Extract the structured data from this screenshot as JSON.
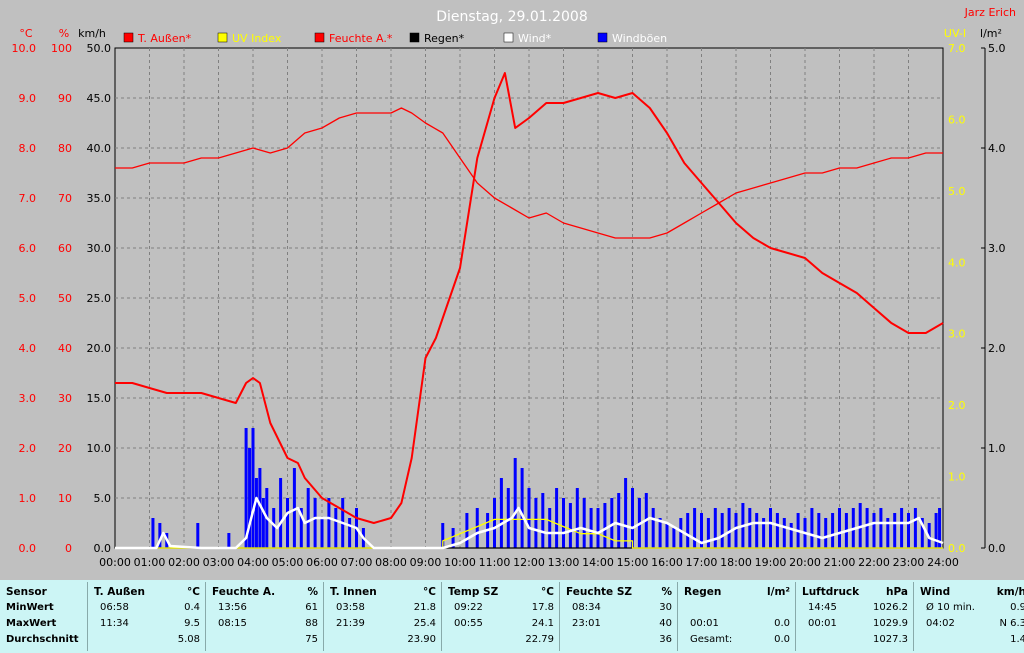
{
  "header": {
    "title": "Dienstag, 29.01.2008",
    "author": "Jarz Erich"
  },
  "axis_units": {
    "temp": "°C",
    "humidity": "%",
    "wind": "km/h",
    "uv": "UV-I",
    "rain": "l/m²"
  },
  "legend": [
    {
      "label": "T. Außen*",
      "swatch": "#ff0000",
      "color": "#ff0000"
    },
    {
      "label": "UV Index",
      "swatch": "#ffff00",
      "color": "#ffff00"
    },
    {
      "label": "Feuchte A.*",
      "swatch": "#ff0000",
      "color": "#ff0000"
    },
    {
      "label": "Regen*",
      "swatch": "#000000",
      "color": "#000000"
    },
    {
      "label": "Wind*",
      "swatch": "#ffffff",
      "color": "#ffffff"
    },
    {
      "label": "Windböen",
      "swatch": "#0000ff",
      "color": "#ffffff"
    }
  ],
  "colors": {
    "background": "#c0c0c0",
    "temp": "#ff0000",
    "humidity": "#ff0000",
    "uv": "#ffff00",
    "wind": "#ffffff",
    "gusts": "#0000ff",
    "rain": "#000000",
    "summary_bg": "#ccf5f5"
  },
  "chart_data": {
    "type": "line",
    "title": "Dienstag, 29.01.2008",
    "x_ticks": [
      "00:00",
      "01:00",
      "02:00",
      "03:00",
      "04:00",
      "05:00",
      "06:00",
      "07:00",
      "08:00",
      "09:00",
      "10:00",
      "11:00",
      "12:00",
      "13:00",
      "14:00",
      "15:00",
      "16:00",
      "17:00",
      "18:00",
      "19:00",
      "20:00",
      "21:00",
      "22:00",
      "23:00",
      "24:00"
    ],
    "y_axes": {
      "temp": {
        "unit": "°C",
        "ylim": [
          0,
          10
        ],
        "ticks": [
          "0.0",
          "1.0",
          "2.0",
          "3.0",
          "4.0",
          "5.0",
          "6.0",
          "7.0",
          "8.0",
          "9.0",
          "10.0"
        ]
      },
      "humidity": {
        "unit": "%",
        "ylim": [
          0,
          100
        ],
        "ticks": [
          "0",
          "10",
          "20",
          "30",
          "40",
          "50",
          "60",
          "70",
          "80",
          "90",
          "100"
        ]
      },
      "wind": {
        "unit": "km/h",
        "ylim": [
          0,
          50
        ],
        "ticks": [
          "0.0",
          "5.0",
          "10.0",
          "15.0",
          "20.0",
          "25.0",
          "30.0",
          "35.0",
          "40.0",
          "45.0",
          "50.0"
        ]
      },
      "uv": {
        "unit": "UV-I",
        "ylim": [
          0,
          7
        ],
        "ticks": [
          "0.0",
          "1.0",
          "2.0",
          "3.0",
          "4.0",
          "5.0",
          "6.0",
          "7.0"
        ]
      },
      "rain": {
        "unit": "l/m²",
        "ylim": [
          0,
          5
        ],
        "ticks": [
          "0.0",
          "1.0",
          "2.0",
          "3.0",
          "4.0",
          "5.0"
        ]
      }
    },
    "grid": true,
    "series": [
      {
        "name": "T. Außen*",
        "axis": "temp",
        "x": [
          0,
          0.5,
          1,
          1.5,
          2,
          2.5,
          3,
          3.5,
          3.8,
          4,
          4.2,
          4.5,
          5,
          5.3,
          5.5,
          6,
          6.5,
          7,
          7.5,
          8,
          8.3,
          8.6,
          9,
          9.3,
          9.6,
          10,
          10.5,
          11,
          11.3,
          11.6,
          12,
          12.5,
          13,
          13.5,
          14,
          14.5,
          15,
          15.5,
          16,
          16.5,
          17,
          17.5,
          18,
          18.5,
          19,
          19.5,
          20,
          20.5,
          21,
          21.5,
          22,
          22.5,
          23,
          23.5,
          24
        ],
        "y": [
          3.3,
          3.3,
          3.2,
          3.1,
          3.1,
          3.1,
          3.0,
          2.9,
          3.3,
          3.4,
          3.3,
          2.5,
          1.8,
          1.7,
          1.4,
          1.0,
          0.8,
          0.6,
          0.5,
          0.6,
          0.9,
          1.8,
          3.8,
          4.2,
          4.8,
          5.6,
          7.8,
          9.0,
          9.5,
          8.4,
          8.6,
          8.9,
          8.9,
          9.0,
          9.1,
          9.0,
          9.1,
          8.8,
          8.3,
          7.7,
          7.3,
          6.9,
          6.5,
          6.2,
          6.0,
          5.9,
          5.8,
          5.5,
          5.3,
          5.1,
          4.8,
          4.5,
          4.3,
          4.3,
          4.5
        ]
      },
      {
        "name": "Feuchte A.*",
        "axis": "humidity",
        "x": [
          0,
          0.5,
          1,
          1.5,
          2,
          2.5,
          3,
          3.5,
          4,
          4.5,
          5,
          5.5,
          6,
          6.5,
          7,
          7.5,
          8,
          8.3,
          8.6,
          9,
          9.5,
          10,
          10.5,
          11,
          11.5,
          12,
          12.5,
          13,
          13.5,
          14,
          14.5,
          15,
          15.5,
          16,
          16.5,
          17,
          17.5,
          18,
          18.5,
          19,
          19.5,
          20,
          20.5,
          21,
          21.5,
          22,
          22.5,
          23,
          23.5,
          24
        ],
        "y": [
          76,
          76,
          77,
          77,
          77,
          78,
          78,
          79,
          80,
          79,
          80,
          83,
          84,
          86,
          87,
          87,
          87,
          88,
          87,
          85,
          83,
          78,
          73,
          70,
          68,
          66,
          67,
          65,
          64,
          63,
          62,
          62,
          62,
          63,
          65,
          67,
          69,
          71,
          72,
          73,
          74,
          75,
          75,
          76,
          76,
          77,
          78,
          78,
          79,
          79
        ]
      },
      {
        "name": "UV Index",
        "axis": "uv",
        "x": [
          0,
          9.5,
          9.5,
          10,
          10.5,
          11,
          11.5,
          12,
          12.5,
          13,
          13.5,
          14,
          14.5,
          15,
          15,
          24
        ],
        "y": [
          0,
          0,
          0.1,
          0.2,
          0.3,
          0.4,
          0.4,
          0.4,
          0.4,
          0.3,
          0.2,
          0.2,
          0.1,
          0.1,
          0,
          0
        ]
      },
      {
        "name": "Wind*",
        "axis": "wind",
        "x": [
          0,
          1.2,
          1.4,
          1.6,
          2.5,
          3.5,
          3.8,
          4.1,
          4.4,
          4.7,
          5.0,
          5.3,
          5.5,
          5.8,
          6.2,
          6.6,
          7.0,
          7.2,
          7.5,
          9.5,
          10.0,
          10.5,
          11.0,
          11.5,
          11.7,
          12.0,
          12.5,
          13.0,
          13.5,
          14.0,
          14.5,
          15.0,
          15.5,
          16.0,
          16.5,
          17.0,
          17.5,
          18.0,
          18.5,
          19.0,
          19.5,
          20.0,
          20.5,
          21.0,
          21.5,
          22.0,
          22.5,
          23.0,
          23.3,
          23.6,
          24
        ],
        "y": [
          0,
          0,
          1.5,
          0.2,
          0,
          0,
          1.0,
          5.0,
          3.0,
          2.0,
          3.5,
          4.0,
          2.5,
          3.0,
          3.0,
          2.5,
          2.0,
          1.0,
          0,
          0,
          0.5,
          1.5,
          2.0,
          3.0,
          4.0,
          2.0,
          1.5,
          1.5,
          2.0,
          1.5,
          2.5,
          2.0,
          3.0,
          2.5,
          1.5,
          0.5,
          1.0,
          2.0,
          2.5,
          2.5,
          2.0,
          1.5,
          1.0,
          1.5,
          2.0,
          2.5,
          2.5,
          2.5,
          3.0,
          1.0,
          0.5
        ]
      },
      {
        "name": "Windböen",
        "axis": "wind",
        "type": "bar",
        "x": [
          1.1,
          1.3,
          1.5,
          2.4,
          3.3,
          3.8,
          3.9,
          4.0,
          4.1,
          4.2,
          4.3,
          4.4,
          4.6,
          4.8,
          5.0,
          5.2,
          5.4,
          5.6,
          5.8,
          6.0,
          6.2,
          6.4,
          6.6,
          6.8,
          7.0,
          7.2,
          9.5,
          9.8,
          10.2,
          10.5,
          10.8,
          11.0,
          11.2,
          11.4,
          11.6,
          11.8,
          12.0,
          12.2,
          12.4,
          12.6,
          12.8,
          13.0,
          13.2,
          13.4,
          13.6,
          13.8,
          14.0,
          14.2,
          14.4,
          14.6,
          14.8,
          15.0,
          15.2,
          15.4,
          15.6,
          15.8,
          16.0,
          16.2,
          16.4,
          16.6,
          16.8,
          17.0,
          17.2,
          17.4,
          17.6,
          17.8,
          18.0,
          18.2,
          18.4,
          18.6,
          18.8,
          19.0,
          19.2,
          19.4,
          19.6,
          19.8,
          20.0,
          20.2,
          20.4,
          20.6,
          20.8,
          21.0,
          21.2,
          21.4,
          21.6,
          21.8,
          22.0,
          22.2,
          22.4,
          22.6,
          22.8,
          23.0,
          23.2,
          23.4,
          23.6,
          23.8,
          23.9
        ],
        "y": [
          3.0,
          2.5,
          1.5,
          2.5,
          1.5,
          12,
          10,
          12,
          7,
          8,
          5,
          6,
          4,
          7,
          5,
          8,
          4,
          6,
          5,
          3,
          5,
          4,
          5,
          3,
          4,
          2,
          2.5,
          2,
          3.5,
          4,
          3.5,
          5,
          7,
          6,
          9,
          8,
          6,
          5,
          5.5,
          4,
          6,
          5,
          4.5,
          6,
          5,
          4,
          4,
          4.5,
          5,
          5.5,
          7,
          6,
          5,
          5.5,
          4,
          3,
          2.5,
          2,
          3,
          3.5,
          4,
          3.5,
          3,
          4,
          3.5,
          4,
          3.5,
          4.5,
          4,
          3.5,
          3,
          4,
          3.5,
          3,
          2.5,
          3.5,
          3,
          4,
          3.5,
          3,
          3.5,
          4,
          3.5,
          4,
          4.5,
          4,
          3.5,
          4,
          3,
          3.5,
          4,
          3.5,
          4,
          3,
          2.5,
          3.5,
          4
        ]
      },
      {
        "name": "Regen*",
        "axis": "rain",
        "x": [
          0,
          24
        ],
        "y": [
          0,
          0
        ]
      }
    ]
  },
  "summary": {
    "row_labels": [
      "Sensor",
      "MinWert",
      "MaxWert",
      "Durchschnitt"
    ],
    "columns": [
      {
        "name": "T. Außen",
        "unit": "°C",
        "rows": [
          [
            "06:58",
            "0.4"
          ],
          [
            "11:34",
            "9.5"
          ],
          [
            "",
            "5.08"
          ]
        ]
      },
      {
        "name": "Feuchte A.",
        "unit": "%",
        "rows": [
          [
            "13:56",
            "61"
          ],
          [
            "08:15",
            "88"
          ],
          [
            "",
            "75"
          ]
        ]
      },
      {
        "name": "T. Innen",
        "unit": "°C",
        "rows": [
          [
            "03:58",
            "21.8"
          ],
          [
            "21:39",
            "25.4"
          ],
          [
            "",
            "23.90"
          ]
        ]
      },
      {
        "name": "Temp SZ",
        "unit": "°C",
        "rows": [
          [
            "09:22",
            "17.8"
          ],
          [
            "00:55",
            "24.1"
          ],
          [
            "",
            "22.79"
          ]
        ]
      },
      {
        "name": "Feuchte SZ",
        "unit": "%",
        "rows": [
          [
            "08:34",
            "30"
          ],
          [
            "23:01",
            "40"
          ],
          [
            "",
            "36"
          ]
        ]
      },
      {
        "name": "Regen",
        "unit": "l/m²",
        "rows": [
          [
            "",
            ""
          ],
          [
            "00:01",
            "0.0"
          ],
          [
            "Gesamt:",
            "0.0"
          ]
        ]
      },
      {
        "name": "Luftdruck",
        "unit": "hPa",
        "rows": [
          [
            "14:45",
            "1026.2"
          ],
          [
            "00:01",
            "1029.9"
          ],
          [
            "",
            "1027.3"
          ]
        ]
      },
      {
        "name": "Wind",
        "unit": "km/h",
        "rows": [
          [
            "Ø 10 min.",
            "0.9"
          ],
          [
            "04:02",
            "N 6.3"
          ],
          [
            "",
            "1.4"
          ]
        ]
      }
    ]
  }
}
